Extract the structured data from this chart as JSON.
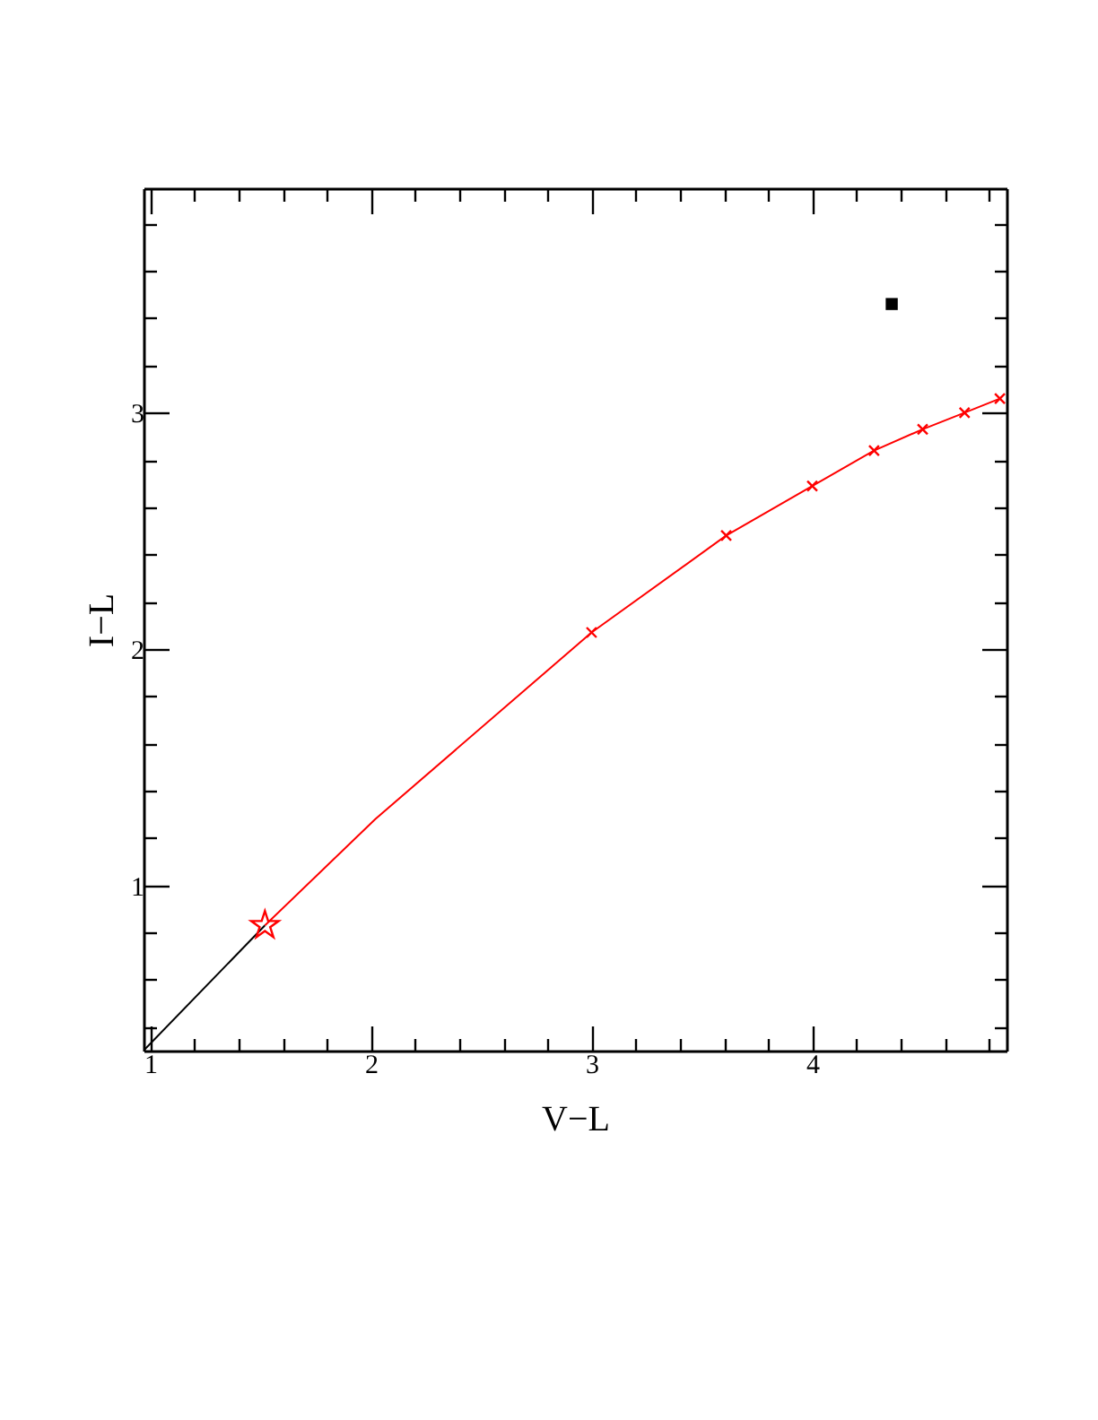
{
  "chart_data": {
    "type": "line",
    "xlabel": "V−L",
    "ylabel": "I−L",
    "xlim": [
      0.97,
      4.88
    ],
    "ylim": [
      0.3,
      3.95
    ],
    "xticks": [
      {
        "value": 1.2,
        "label": null
      },
      {
        "value": 1.4,
        "label": null
      },
      {
        "value": 1.6,
        "label": null
      },
      {
        "value": 1.8,
        "label": null
      },
      1,
      2,
      3,
      4,
      {
        "value": 2.2,
        "label": null
      },
      {
        "value": 2.4,
        "label": null
      },
      {
        "value": 2.6,
        "label": null
      },
      {
        "value": 2.8,
        "label": null
      },
      {
        "value": 3.2,
        "label": null
      },
      {
        "value": 3.4,
        "label": null
      },
      {
        "value": 3.6,
        "label": null
      },
      {
        "value": 3.8,
        "label": null
      },
      {
        "value": 4.2,
        "label": null
      },
      {
        "value": 4.4,
        "label": null
      },
      {
        "value": 4.6,
        "label": null
      },
      {
        "value": 4.8,
        "label": null
      }
    ],
    "yticks": [
      {
        "value": 0.4,
        "label": null
      },
      {
        "value": 0.6,
        "label": null
      },
      {
        "value": 0.8,
        "label": null
      },
      1,
      2,
      3,
      {
        "value": 1.2,
        "label": null
      },
      {
        "value": 1.4,
        "label": null
      },
      {
        "value": 1.6,
        "label": null
      },
      {
        "value": 1.8,
        "label": null
      },
      {
        "value": 2.2,
        "label": null
      },
      {
        "value": 2.4,
        "label": null
      },
      {
        "value": 2.6,
        "label": null
      },
      {
        "value": 2.8,
        "label": null
      },
      {
        "value": 3.2,
        "label": null
      },
      {
        "value": 3.4,
        "label": null
      },
      {
        "value": 3.6,
        "label": null
      },
      {
        "value": 3.8,
        "label": null
      }
    ],
    "grid": false,
    "series": [
      {
        "color": "#000000",
        "line_style": "solid",
        "x": [
          0.97,
          1.52
        ],
        "values": [
          0.3,
          0.83
        ]
      },
      {
        "color": "#ff0000",
        "line_style": "solid",
        "x": [
          1.52,
          2.02,
          3.0,
          3.61,
          4.0,
          4.28,
          4.5,
          4.69,
          4.85
        ],
        "values": [
          0.83,
          1.28,
          2.07,
          2.48,
          2.69,
          2.84,
          2.93,
          3.0,
          3.06
        ]
      },
      {
        "type": "scatter",
        "color": "#ff0000",
        "marker": "cross",
        "x": [
          3.0,
          3.61,
          4.0,
          4.28,
          4.5,
          4.69,
          4.85
        ],
        "values": [
          2.07,
          2.48,
          2.69,
          2.84,
          2.93,
          3.0,
          3.06
        ]
      },
      {
        "type": "scatter",
        "color": "#ff0000",
        "marker": "star",
        "x": [
          1.52
        ],
        "values": [
          0.83
        ]
      },
      {
        "type": "scatter",
        "color": "#000000",
        "marker": "square",
        "x": [
          4.36
        ],
        "values": [
          3.46
        ]
      }
    ]
  }
}
